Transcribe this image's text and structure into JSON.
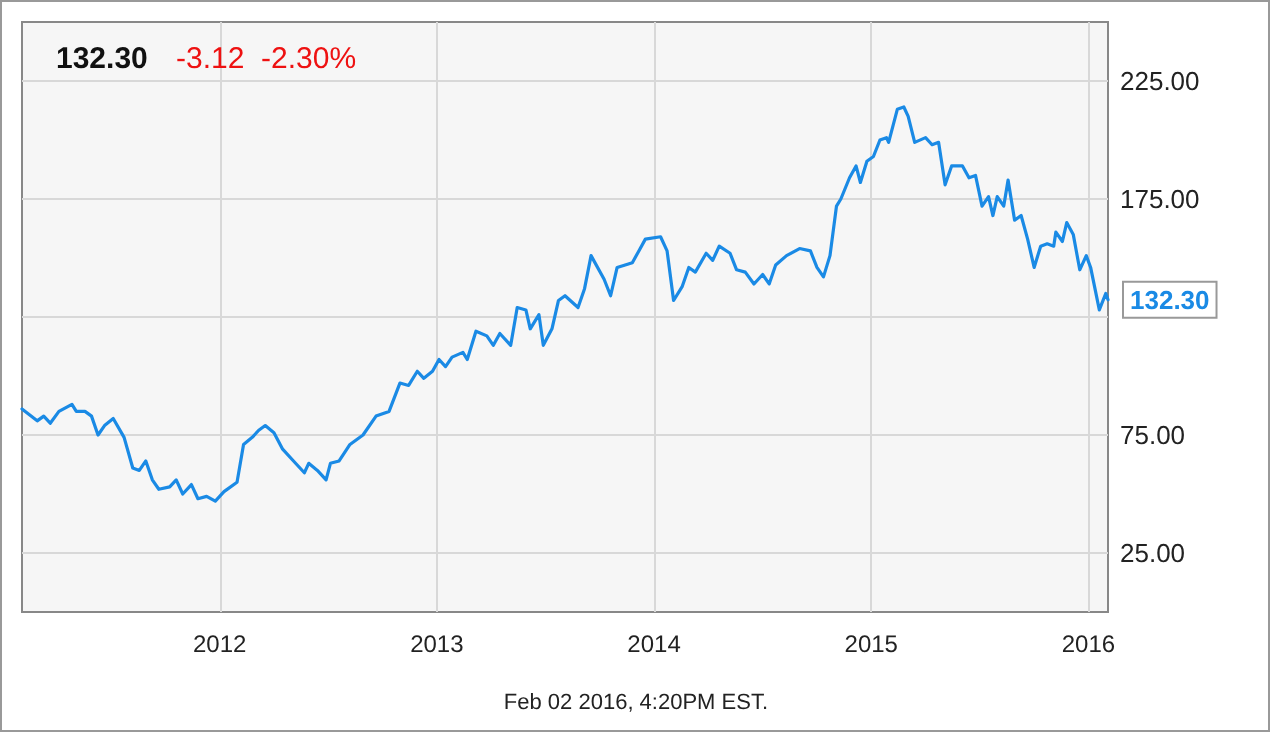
{
  "chart_data": {
    "type": "line",
    "title": "132.30",
    "subtitle": "-3.12  -2.30%",
    "annotations": [
      "Feb 02 2016, 4:20PM EST."
    ],
    "x": [
      2011.09,
      2011.16,
      2011.19,
      2011.22,
      2011.26,
      2011.32,
      2011.34,
      2011.38,
      2011.41,
      2011.44,
      2011.47,
      2011.51,
      2011.56,
      2011.6,
      2011.63,
      2011.66,
      2011.69,
      2011.72,
      2011.77,
      2011.8,
      2011.83,
      2011.87,
      2011.9,
      2011.94,
      2011.98,
      2012.02,
      2012.08,
      2012.11,
      2012.15,
      2012.18,
      2012.21,
      2012.25,
      2012.29,
      2012.34,
      2012.39,
      2012.41,
      2012.45,
      2012.49,
      2012.51,
      2012.55,
      2012.6,
      2012.66,
      2012.72,
      2012.78,
      2012.83,
      2012.87,
      2012.91,
      2012.94,
      2012.98,
      2013.01,
      2013.04,
      2013.07,
      2013.12,
      2013.14,
      2013.18,
      2013.23,
      2013.26,
      2013.29,
      2013.34,
      2013.37,
      2013.41,
      2013.43,
      2013.47,
      2013.49,
      2013.53,
      2013.56,
      2013.59,
      2013.65,
      2013.68,
      2013.71,
      2013.77,
      2013.8,
      2013.83,
      2013.9,
      2013.93,
      2013.96,
      2014.03,
      2014.06,
      2014.09,
      2014.13,
      2014.16,
      2014.19,
      2014.24,
      2014.27,
      2014.3,
      2014.35,
      2014.38,
      2014.42,
      2014.46,
      2014.5,
      2014.53,
      2014.56,
      2014.61,
      2014.67,
      2014.72,
      2014.75,
      2014.78,
      2014.81,
      2014.84,
      2014.86,
      2014.9,
      2014.93,
      2014.95,
      2014.98,
      2015.01,
      2015.04,
      2015.07,
      2015.08,
      2015.12,
      2015.15,
      2015.17,
      2015.2,
      2015.25,
      2015.28,
      2015.31,
      2015.34,
      2015.37,
      2015.42,
      2015.45,
      2015.48,
      2015.51,
      2015.54,
      2015.56,
      2015.58,
      2015.61,
      2015.63,
      2015.66,
      2015.69,
      2015.72,
      2015.75,
      2015.78,
      2015.81,
      2015.84,
      2015.85,
      2015.88,
      2015.9,
      2015.93,
      2015.96,
      2015.99,
      2016.01,
      2016.05,
      2016.08,
      2016.09
    ],
    "series": [
      {
        "color": "#1a8ae5",
        "values": [
          86,
          81,
          83,
          80,
          85,
          88,
          85,
          85,
          83,
          75,
          79,
          82,
          74,
          61,
          60,
          64,
          56,
          52,
          53,
          56,
          50,
          54,
          48,
          49,
          47,
          51,
          55,
          71,
          74,
          77,
          79,
          76,
          69,
          64,
          59,
          63,
          60,
          56,
          63,
          64,
          71,
          75,
          83,
          85,
          97,
          96,
          102,
          99,
          102,
          107,
          104,
          108,
          110,
          107,
          119,
          117,
          113,
          118,
          113,
          129,
          128,
          120,
          126,
          113,
          120,
          132,
          134,
          129,
          137,
          151,
          141,
          134,
          146,
          148,
          153,
          158,
          159,
          153,
          132,
          138,
          146,
          144,
          152,
          149,
          155,
          152,
          145,
          144,
          139,
          143,
          139,
          147,
          151,
          154,
          153,
          146,
          142,
          151,
          172,
          175,
          184,
          189,
          182,
          191,
          193,
          200,
          201,
          199,
          213,
          214,
          210,
          199,
          201,
          198,
          199,
          181,
          189,
          189,
          184,
          185,
          172,
          176,
          168,
          176,
          172,
          183,
          166,
          168,
          158,
          146,
          155,
          156,
          155,
          161,
          157,
          165,
          160,
          145,
          151,
          146,
          128,
          135,
          132.3
        ],
        "value_labels": [
          null,
          null,
          null,
          null,
          null,
          null,
          null,
          null,
          null,
          null,
          null,
          null,
          null,
          null,
          null,
          null,
          null,
          null,
          null,
          null,
          null,
          null,
          null,
          null,
          null,
          null,
          null,
          null,
          null,
          null,
          null,
          null,
          null,
          null,
          null,
          null,
          null,
          null,
          null,
          null,
          null,
          null,
          null,
          null,
          null,
          null,
          null,
          null,
          null,
          null,
          null,
          null,
          null,
          null,
          null,
          null,
          null,
          null,
          null,
          null,
          null,
          null,
          null,
          null,
          null,
          null,
          null,
          null,
          null,
          null,
          null,
          null,
          null,
          null,
          null,
          null,
          null,
          null,
          null,
          null,
          null,
          null,
          null,
          null,
          null,
          null,
          null,
          null,
          null,
          null,
          null,
          null,
          null,
          null,
          null,
          null,
          null,
          null,
          null,
          null,
          null,
          null,
          null,
          null,
          null,
          null,
          null,
          null,
          null,
          null,
          null,
          null,
          null,
          null,
          null,
          null,
          null,
          null,
          null,
          null,
          null,
          null,
          null,
          null,
          null,
          null,
          null,
          null,
          null,
          null,
          null,
          null,
          null,
          null,
          null,
          null,
          null,
          null,
          null,
          null,
          null,
          null,
          "132.30"
        ]
      }
    ],
    "xlim": [
      2011.09,
      2016.09
    ],
    "xticks": [
      2012,
      2013,
      2014,
      2015,
      2016
    ],
    "ylim": [
      0,
      250
    ],
    "yticks": [
      {
        "value": 25,
        "label": "25.00"
      },
      {
        "value": 75,
        "label": "75.00"
      },
      {
        "value": 125,
        "label": null
      },
      {
        "value": 175,
        "label": "175.00"
      },
      {
        "value": 225,
        "label": "225.00"
      }
    ],
    "grid": true,
    "marker": "none",
    "line_style": "solid"
  }
}
